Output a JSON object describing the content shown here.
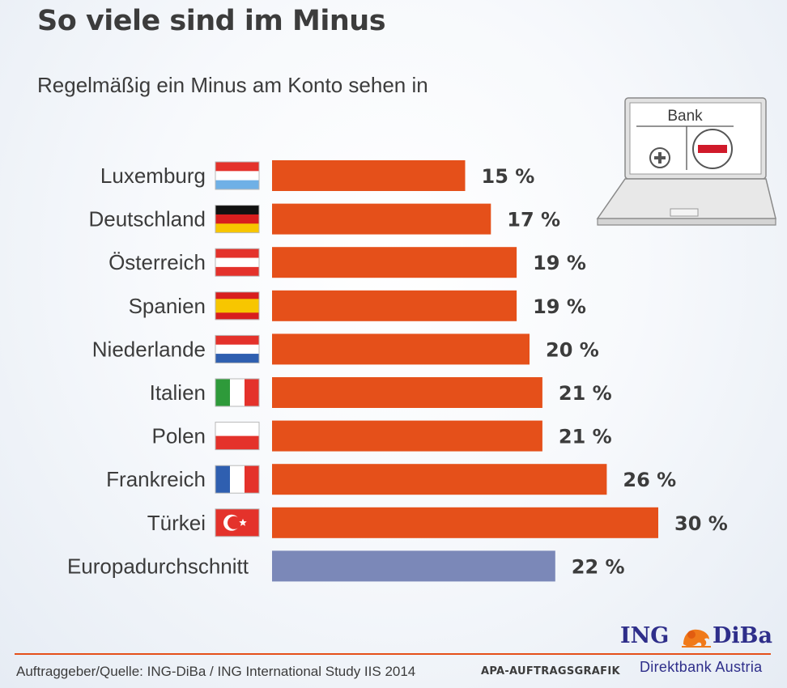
{
  "title": "So viele sind im Minus",
  "subtitle": "Regelmäßig ein Minus am Konto sehen in",
  "laptop_label": "Bank",
  "source": "Auftraggeber/Quelle: ING-DiBa / ING International Study IIS 2014",
  "credit": "APA-AUFTRAGSGRAFIK",
  "brand": {
    "left": "ING",
    "right": "DiBa",
    "tagline": "Direktbank Austria"
  },
  "colors": {
    "bar": "#e5501a",
    "average_bar": "#7b88b8",
    "brand": "#2e2e8a"
  },
  "chart_data": {
    "type": "bar",
    "orientation": "horizontal",
    "categories": [
      "Luxemburg",
      "Deutschland",
      "Österreich",
      "Spanien",
      "Niederlande",
      "Italien",
      "Polen",
      "Frankreich",
      "Türkei",
      "Europadurchschnitt"
    ],
    "values": [
      15,
      17,
      19,
      19,
      20,
      21,
      21,
      26,
      30,
      22
    ],
    "value_labels": [
      "15 %",
      "17 %",
      "19 %",
      "19 %",
      "20 %",
      "21 %",
      "21 %",
      "26 %",
      "30 %",
      "22 %"
    ],
    "flags": [
      "luxembourg-flag",
      "germany-flag",
      "austria-flag",
      "spain-flag",
      "netherlands-flag",
      "italy-flag",
      "poland-flag",
      "france-flag",
      "turkey-flag",
      null
    ],
    "highlight": {
      "category": "Europadurchschnitt",
      "color": "#7b88b8"
    },
    "unit": "%"
  }
}
